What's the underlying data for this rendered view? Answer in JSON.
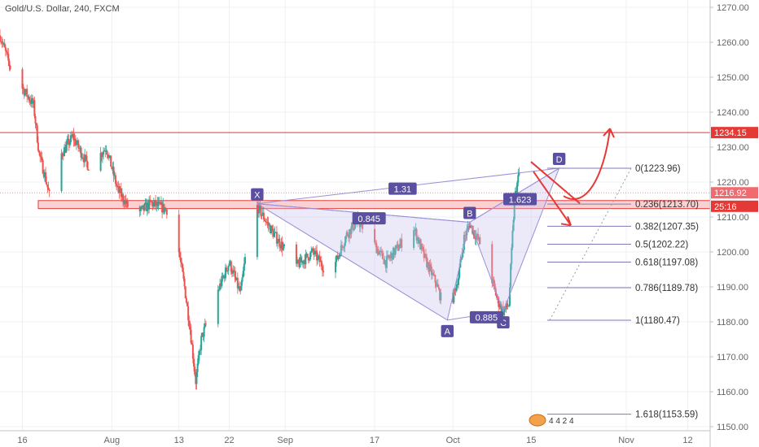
{
  "symbol_title": "Gold/U.S. Dollar, 240, FXCM",
  "colors": {
    "up": "#26a69a",
    "down": "#ef5350",
    "pattern_fill": "#c9c3ee",
    "pattern_line": "#9b8fd6",
    "label_bg": "#5a4fa0",
    "fib_line": "#7e7ab8",
    "red": "#e53935",
    "zone_fill": "#f8c9cb",
    "zone_border": "#e53935",
    "grid": "#eef0f4",
    "axis_text": "#666666"
  },
  "chart_data": {
    "type": "candlestick",
    "title": "Gold/U.S. Dollar, 240, FXCM",
    "y_axis": {
      "range": [
        1148,
        1275
      ],
      "ticks": [
        1150,
        1160,
        1170,
        1180,
        1190,
        1200,
        1210,
        1220,
        1230,
        1240,
        1250,
        1260,
        1270
      ],
      "tick_labels": [
        "1150.00",
        "1160.00",
        "1170.00",
        "1180.00",
        "1190.00",
        "1200.00",
        "1210.00",
        "1220.00",
        "1230.00",
        "1240.00",
        "1250.00",
        "1260.00",
        "1270.00"
      ]
    },
    "x_axis": {
      "range": [
        "2018-07-12",
        "2018-11-16"
      ],
      "ticks": [
        {
          "date": "2018-07-16",
          "label": "16"
        },
        {
          "date": "2018-08-01",
          "label": "Aug"
        },
        {
          "date": "2018-08-13",
          "label": "13"
        },
        {
          "date": "2018-08-22",
          "label": "22"
        },
        {
          "date": "2018-09-01",
          "label": "Sep"
        },
        {
          "date": "2018-09-17",
          "label": "17"
        },
        {
          "date": "2018-10-01",
          "label": "Oct"
        },
        {
          "date": "2018-10-15",
          "label": "15"
        },
        {
          "date": "2018-11-01",
          "label": "Nov"
        },
        {
          "date": "2018-11-12",
          "label": "12"
        }
      ]
    },
    "price_path": [
      [
        "2018-07-12",
        1262
      ],
      [
        "2018-07-14",
        1252
      ],
      [
        "2018-07-18",
        1242
      ],
      [
        "2018-07-19",
        1228
      ],
      [
        "2018-07-20",
        1222
      ],
      [
        "2018-07-21",
        1215
      ],
      [
        "2018-07-23",
        1228
      ],
      [
        "2018-07-25",
        1233
      ],
      [
        "2018-07-28",
        1224
      ],
      [
        "2018-07-31",
        1230
      ],
      [
        "2018-08-02",
        1218
      ],
      [
        "2018-08-05",
        1210
      ],
      [
        "2018-08-08",
        1214
      ],
      [
        "2018-08-11",
        1212
      ],
      [
        "2018-08-13",
        1200
      ],
      [
        "2018-08-14",
        1190
      ],
      [
        "2018-08-15",
        1178
      ],
      [
        "2018-08-16",
        1163
      ],
      [
        "2018-08-17",
        1175
      ],
      [
        "2018-08-19",
        1185
      ],
      [
        "2018-08-22",
        1197
      ],
      [
        "2018-08-24",
        1188
      ],
      [
        "2018-08-25",
        1200
      ],
      [
        "2018-08-27",
        1213
      ],
      [
        "2018-08-30",
        1205
      ],
      [
        "2018-09-03",
        1196
      ],
      [
        "2018-09-06",
        1200
      ],
      [
        "2018-09-09",
        1193
      ],
      [
        "2018-09-12",
        1205
      ],
      [
        "2018-09-14",
        1209
      ],
      [
        "2018-09-17",
        1202
      ],
      [
        "2018-09-19",
        1197
      ],
      [
        "2018-09-22",
        1203
      ],
      [
        "2018-09-24",
        1207
      ],
      [
        "2018-09-26",
        1198
      ],
      [
        "2018-09-28",
        1191
      ],
      [
        "2018-09-30",
        1181
      ],
      [
        "2018-10-02",
        1193
      ],
      [
        "2018-10-03",
        1204
      ],
      [
        "2018-10-04",
        1208
      ],
      [
        "2018-10-06",
        1202
      ],
      [
        "2018-10-08",
        1192
      ],
      [
        "2018-10-09",
        1186
      ],
      [
        "2018-10-10",
        1183
      ],
      [
        "2018-10-11",
        1185
      ],
      [
        "2018-10-12",
        1215
      ],
      [
        "2018-10-13",
        1224
      ],
      [
        "2018-10-14",
        1223
      ]
    ],
    "price_labels": [
      {
        "value": 1234.15,
        "text": "1234.15"
      },
      {
        "value": 1216.92,
        "text": "1216.92"
      },
      {
        "value": 1214.0,
        "text": "25:16"
      }
    ],
    "resistance_line": 1234.15,
    "current_price": 1216.92,
    "support_zone": [
      1212.4,
      1214.7
    ],
    "harmonic_points": [
      {
        "label": "X",
        "date": "2018-08-27",
        "price": 1213.8
      },
      {
        "label": "A",
        "date": "2018-09-30",
        "price": 1180.5
      },
      {
        "label": "B",
        "date": "2018-10-04",
        "price": 1208.5
      },
      {
        "label": "C",
        "date": "2018-10-10",
        "price": 1183.0
      },
      {
        "label": "D",
        "date": "2018-10-20",
        "price": 1223.96
      }
    ],
    "ratio_labels": [
      {
        "text": "1.31",
        "date": "2018-09-22",
        "price": 1218
      },
      {
        "text": "0.845",
        "date": "2018-09-16",
        "price": 1209.5
      },
      {
        "text": "0.885",
        "date": "2018-10-07",
        "price": 1181.2
      },
      {
        "text": "1.623",
        "date": "2018-10-13",
        "price": 1215
      }
    ],
    "fib_levels": [
      {
        "ratio": "0",
        "price": 1223.96,
        "label": "0(1223.96)"
      },
      {
        "ratio": "0.236",
        "price": 1213.7,
        "label": "0.236(1213.70)"
      },
      {
        "ratio": "0.382",
        "price": 1207.35,
        "label": "0.382(1207.35)"
      },
      {
        "ratio": "0.5",
        "price": 1202.22,
        "label": "0.5(1202.22)"
      },
      {
        "ratio": "0.618",
        "price": 1197.08,
        "label": "0.618(1197.08)"
      },
      {
        "ratio": "0.786",
        "price": 1189.78,
        "label": "0.786(1189.78)"
      },
      {
        "ratio": "1",
        "price": 1180.47,
        "label": "1(1180.47)"
      },
      {
        "ratio": "1.618",
        "price": 1153.59,
        "label": "1.618(1153.59)"
      }
    ],
    "events_badge": "4 4 2 4"
  }
}
